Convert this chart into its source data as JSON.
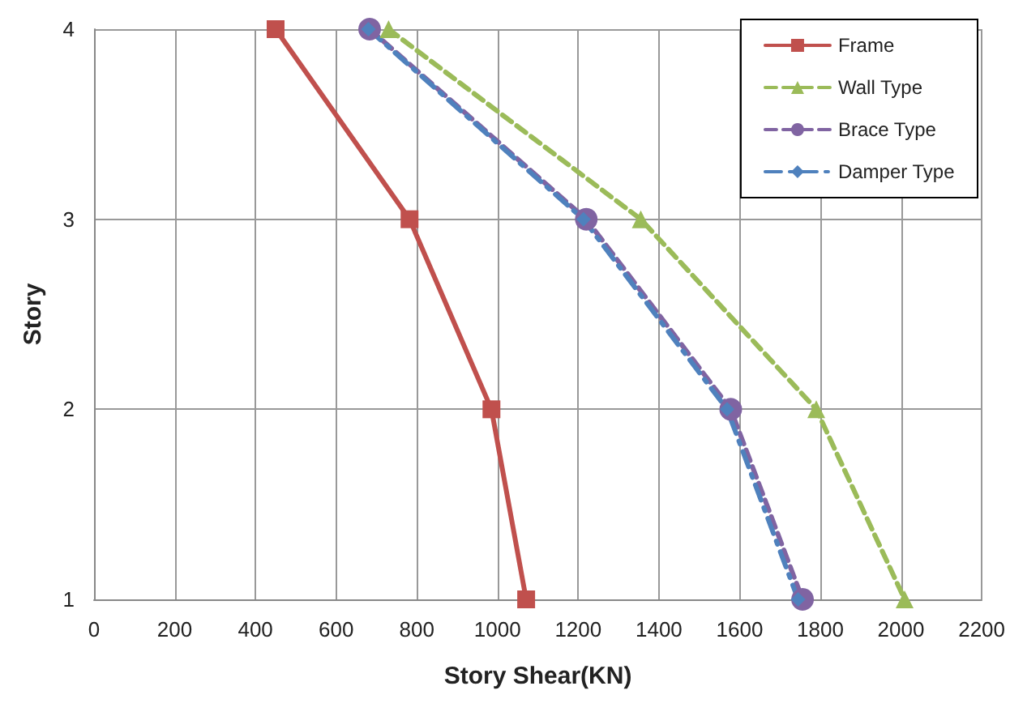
{
  "chart_data": {
    "type": "line",
    "xlabel": "Story Shear(KN)",
    "ylabel": "Story",
    "xlim": [
      0,
      2200
    ],
    "xticks": [
      0,
      200,
      400,
      600,
      800,
      1000,
      1200,
      1400,
      1600,
      1800,
      2000,
      2200
    ],
    "ylim": [
      1,
      4
    ],
    "yticks": [
      1,
      2,
      3,
      4
    ],
    "grid": true,
    "legend": "top right",
    "series": [
      {
        "name": "Frame",
        "color": "#c0504d",
        "marker": "square",
        "line_style": "solid",
        "x": [
          450,
          782,
          985,
          1071
        ],
        "values": [
          4,
          3,
          2,
          1
        ]
      },
      {
        "name": "Wall Type",
        "color": "#9bbb59",
        "marker": "triangle",
        "line_style": "dashed",
        "x": [
          730,
          1355,
          1790,
          2009
        ],
        "values": [
          4,
          3,
          2,
          1
        ]
      },
      {
        "name": "Brace Type",
        "color": "#8064a2",
        "marker": "circle",
        "line_style": "dashed",
        "x": [
          683,
          1220,
          1578,
          1756
        ],
        "values": [
          4,
          3,
          2,
          1
        ]
      },
      {
        "name": "Damper Type",
        "color": "#4f81bd",
        "marker": "diamond",
        "line_style": "dashdot",
        "x": [
          680,
          1213,
          1569,
          1745
        ],
        "values": [
          4,
          3,
          2,
          1
        ]
      }
    ]
  }
}
